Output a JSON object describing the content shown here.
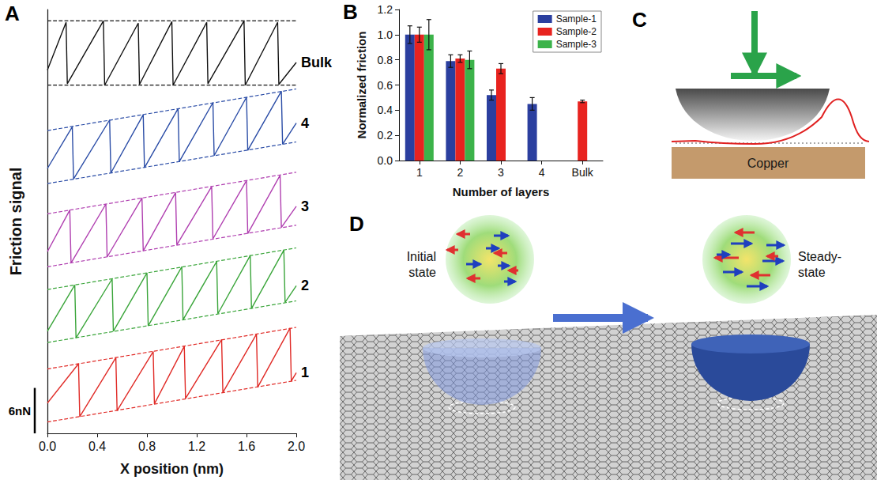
{
  "chart_data": [
    {
      "panel": "A",
      "type": "line",
      "x_label": "X position (nm)",
      "y_label": "Friction signal",
      "xlim": [
        0,
        2
      ],
      "xticks": [
        {
          "value": 0,
          "label": "0.0"
        },
        0.4,
        0.8,
        1.2,
        1.6,
        {
          "value": 2,
          "label": "2.0"
        }
      ],
      "ylim": [
        0,
        56
      ],
      "tick_labels": "x",
      "grid": false,
      "scale_bar": {
        "value": 6,
        "label": "6nN"
      },
      "series": [
        {
          "name": "Bulk",
          "color": "#111111",
          "x": [
            0,
            0.15,
            0.16,
            0.45,
            0.46,
            0.73,
            0.74,
            1.0,
            1.01,
            1.28,
            1.29,
            1.58,
            1.59,
            1.85,
            1.86,
            2.0
          ],
          "values": [
            48,
            54.3,
            46.2,
            54.5,
            46,
            54.2,
            46.1,
            54.4,
            46,
            54.3,
            46.2,
            54.5,
            46,
            54.3,
            46.1,
            49
          ],
          "bounds": {
            "x": [
              0,
              2
            ],
            "lower": [
              46,
              46
            ],
            "upper": [
              54.5,
              54.5
            ]
          }
        },
        {
          "name": "4",
          "color": "#2a4ca6",
          "x": [
            0,
            0.2,
            0.21,
            0.5,
            0.51,
            0.77,
            0.78,
            1.05,
            1.06,
            1.33,
            1.34,
            1.6,
            1.61,
            1.88,
            1.89,
            2.0
          ],
          "values": [
            35,
            40.5,
            33.6,
            41.4,
            34.4,
            42.1,
            35.1,
            42.9,
            35.9,
            43.7,
            36.7,
            44.4,
            37.4,
            45.2,
            38.2,
            41
          ],
          "bounds": {
            "x": [
              0,
              2
            ],
            "lower": [
              33,
              38.5
            ],
            "upper": [
              40,
              45.5
            ]
          }
        },
        {
          "name": "3",
          "color": "#b03fb0",
          "x": [
            0,
            0.18,
            0.19,
            0.47,
            0.48,
            0.76,
            0.77,
            1.03,
            1.04,
            1.32,
            1.33,
            1.6,
            1.61,
            1.87,
            1.88,
            2.0
          ],
          "values": [
            24,
            29.5,
            22.5,
            30.3,
            23.3,
            31.1,
            24.1,
            31.8,
            24.9,
            32.6,
            25.7,
            33.4,
            26.4,
            34.1,
            27.2,
            30
          ],
          "bounds": {
            "x": [
              0,
              2
            ],
            "lower": [
              22,
              27.5
            ],
            "upper": [
              29,
              34.5
            ]
          }
        },
        {
          "name": "2",
          "color": "#3aa53a",
          "x": [
            0,
            0.22,
            0.23,
            0.52,
            0.53,
            0.8,
            0.81,
            1.08,
            1.09,
            1.36,
            1.37,
            1.63,
            1.64,
            1.9,
            1.91,
            2.0
          ],
          "values": [
            13.5,
            19.6,
            12.6,
            20.4,
            13.5,
            21.2,
            14.2,
            22.0,
            15.0,
            22.7,
            15.8,
            23.5,
            16.5,
            24.2,
            17.3,
            19.5
          ],
          "bounds": {
            "x": [
              0,
              2
            ],
            "lower": [
              12,
              17.5
            ],
            "upper": [
              19,
              24.5
            ]
          }
        },
        {
          "name": "1",
          "color": "#e02a26",
          "x": [
            0,
            0.25,
            0.26,
            0.55,
            0.56,
            0.85,
            0.86,
            1.1,
            1.11,
            1.4,
            1.41,
            1.68,
            1.69,
            1.95,
            1.96,
            2.0
          ],
          "values": [
            4,
            9.2,
            2.2,
            10.0,
            3.0,
            10.8,
            3.9,
            11.5,
            4.6,
            12.4,
            5.4,
            13.1,
            6.1,
            13.9,
            6.9,
            8
          ],
          "bounds": {
            "x": [
              0,
              2
            ],
            "lower": [
              1.5,
              7
            ],
            "upper": [
              8.5,
              14
            ]
          }
        }
      ]
    },
    {
      "panel": "B",
      "type": "bar",
      "x_label": "Number of layers",
      "y_label": "Normalized friction",
      "categories": [
        "1",
        "2",
        "3",
        "4",
        "Bulk"
      ],
      "ylim": [
        0,
        1.2
      ],
      "yticks": [
        {
          "value": 0,
          "label": "0.0"
        },
        0.2,
        0.4,
        0.6,
        0.8,
        {
          "value": 1,
          "label": "1.0"
        },
        1.2
      ],
      "legend": "upper right",
      "grid": false,
      "series": [
        {
          "name": "Sample-1",
          "color": "#2b3f9f",
          "values": [
            1.0,
            0.79,
            0.52,
            0.45,
            null
          ],
          "errors": [
            0.07,
            0.05,
            0.04,
            0.05,
            null
          ]
        },
        {
          "name": "Sample-2",
          "color": "#e8231f",
          "values": [
            1.0,
            0.81,
            0.73,
            null,
            0.47
          ],
          "errors": [
            0.06,
            0.03,
            0.04,
            null,
            0.01
          ]
        },
        {
          "name": "Sample-3",
          "color": "#3cb34a",
          "values": [
            1.0,
            0.8,
            null,
            null,
            null
          ],
          "errors": [
            0.12,
            0.07,
            null,
            null,
            null
          ]
        }
      ]
    }
  ],
  "diagrams": {
    "C": {
      "panel": "C",
      "label": "Copper"
    },
    "D": {
      "panel": "D",
      "states": [
        "Initial state",
        "Steady-state"
      ]
    }
  }
}
